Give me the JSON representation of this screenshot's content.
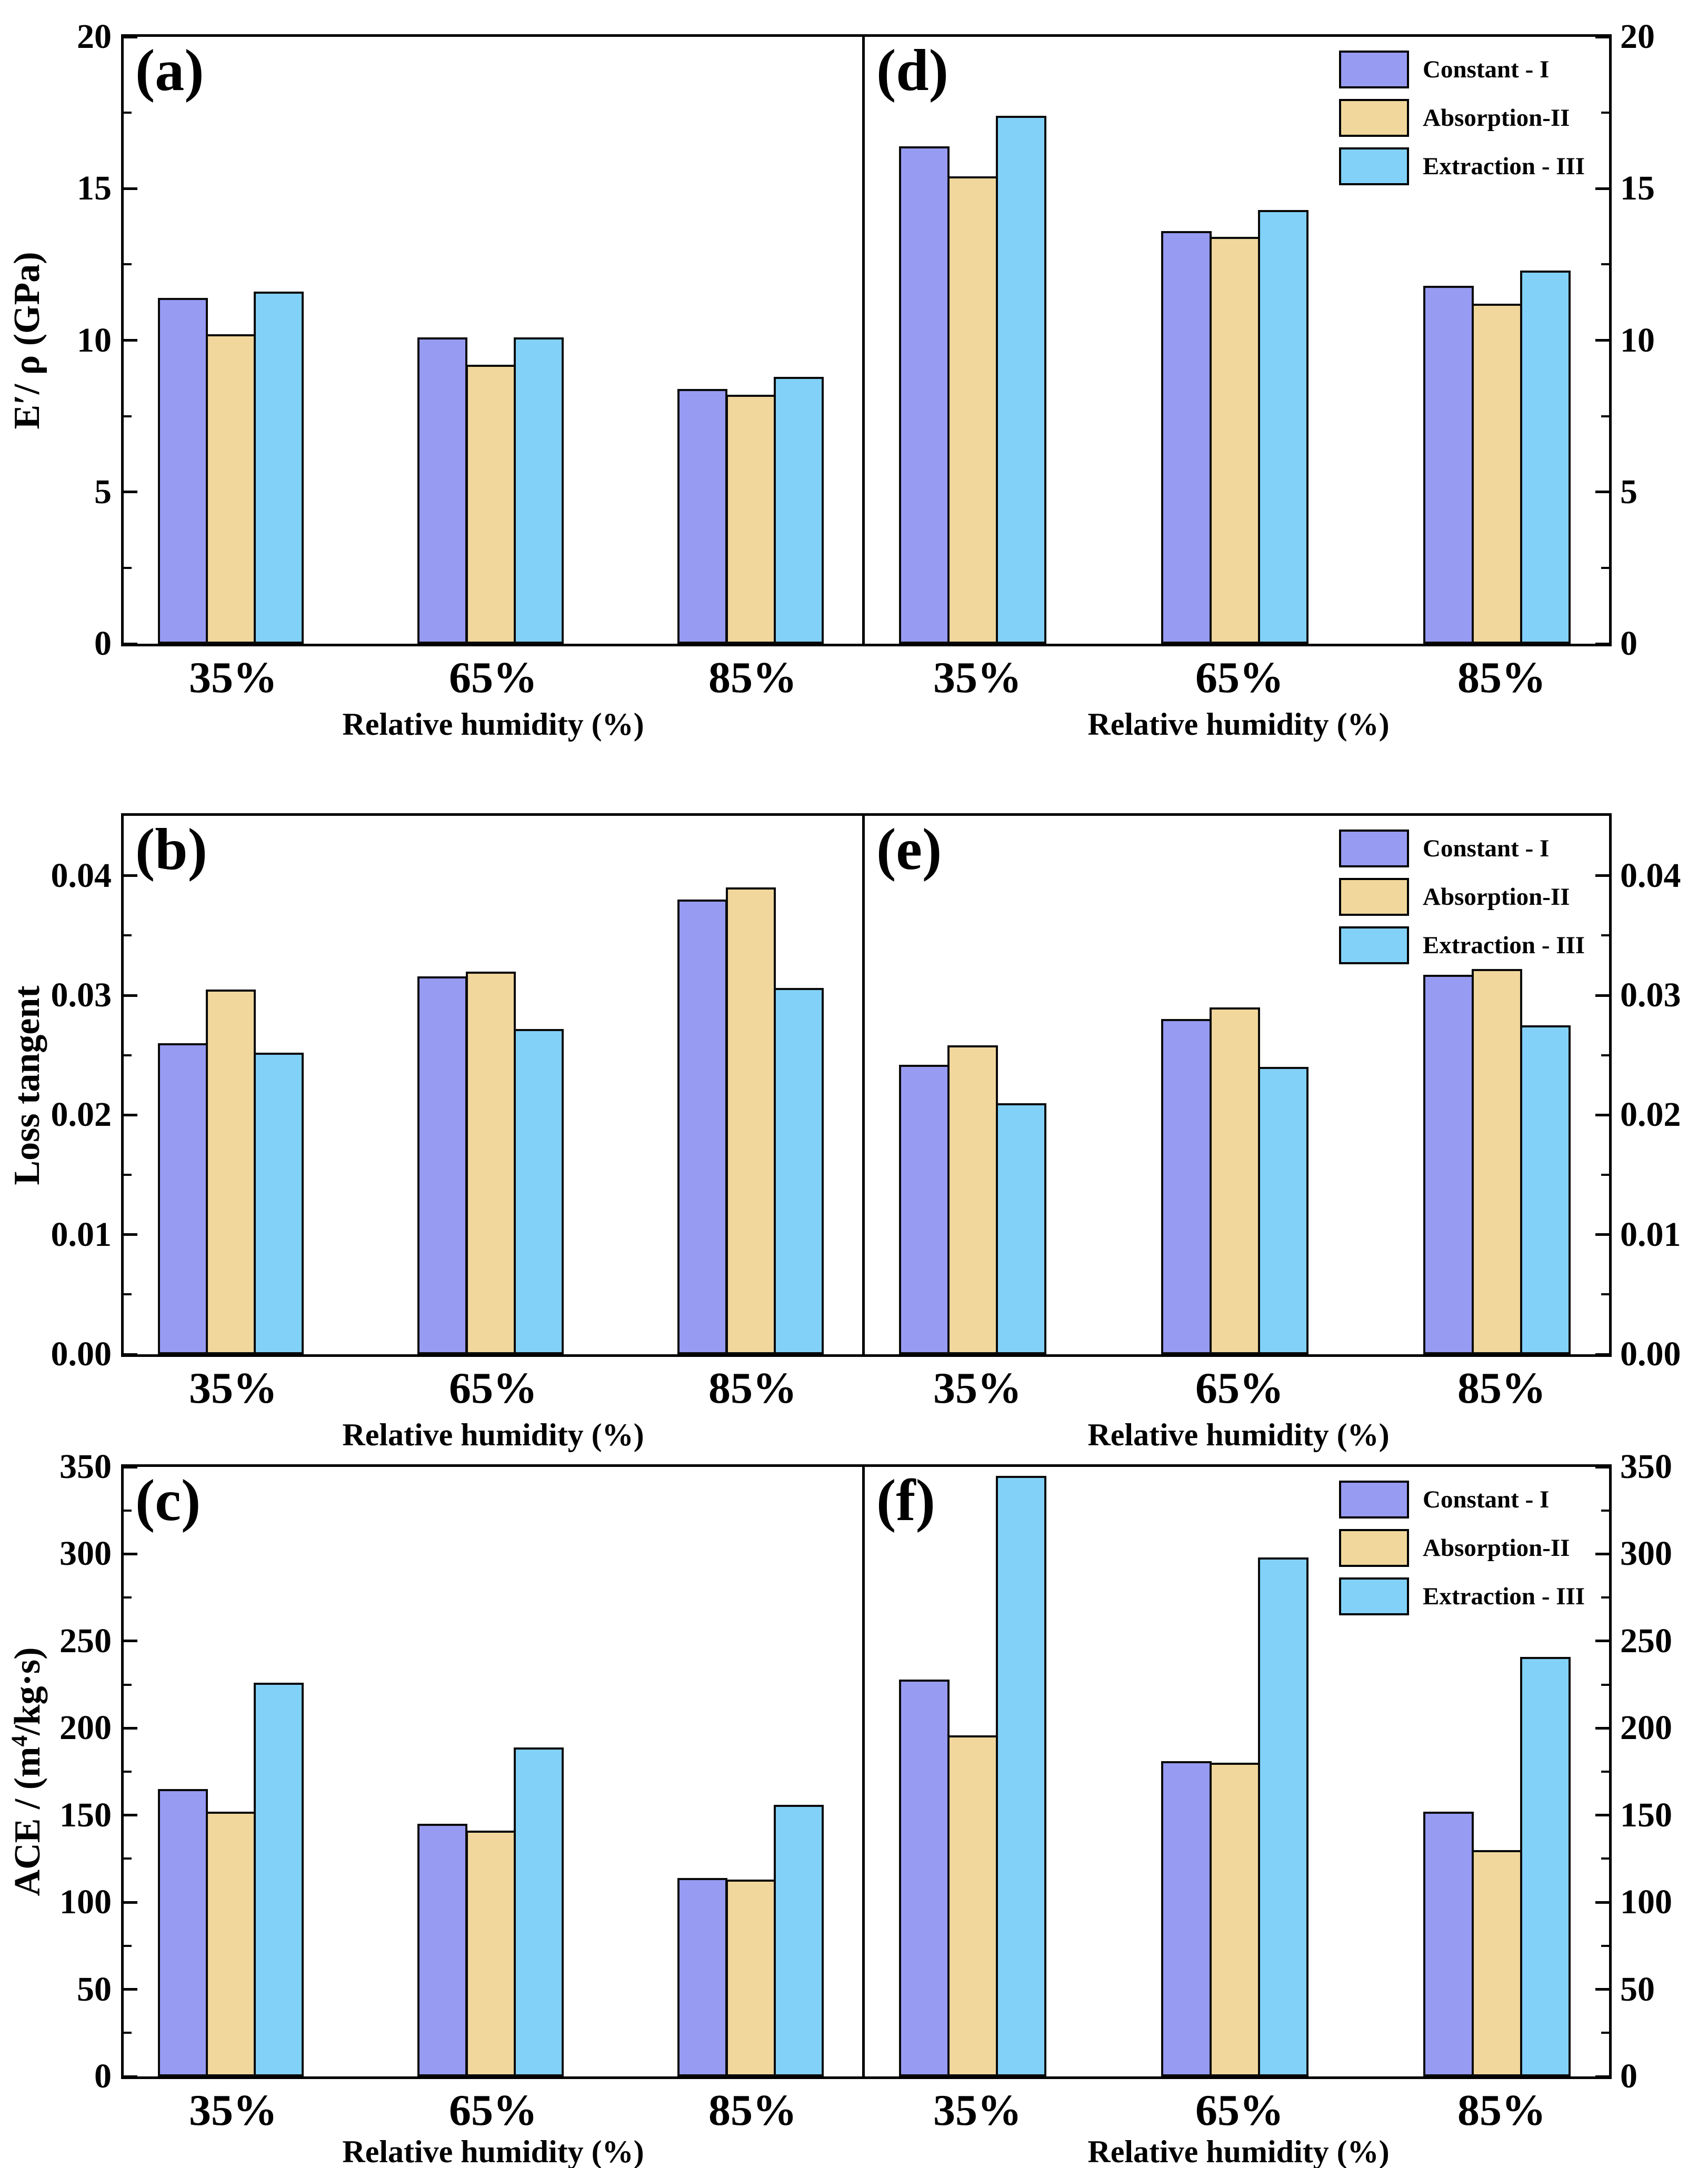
{
  "figure": {
    "background": "#ffffff",
    "axis_color": "#000000",
    "bar_border_color": "#0a0a0a",
    "x_title": "Relative humidity (%)",
    "categories": [
      "35%",
      "65%",
      "85%"
    ],
    "series": [
      {
        "name": "Constant  - I",
        "color": "#989BF2"
      },
      {
        "name": "Absorption-II",
        "color": "#F1D79C"
      },
      {
        "name": "Extraction - III",
        "color": "#82D1F9"
      }
    ]
  },
  "chart_data": [
    {
      "panel": "(a)",
      "type": "bar",
      "row": 1,
      "side": "left",
      "ylabel": "E′/ ρ (GPa)",
      "xlabel": "Relative humidity (%)",
      "ylim": [
        0,
        20
      ],
      "yticks": [
        0,
        5,
        10,
        15,
        20
      ],
      "minor_tick_step": 2.5,
      "tick_decimals": 0,
      "grid": false,
      "legend": false,
      "categories": [
        "35%",
        "65%",
        "85%"
      ],
      "series": [
        {
          "name": "Constant  - I",
          "values": [
            11.4,
            10.1,
            8.4
          ]
        },
        {
          "name": "Absorption-II",
          "values": [
            10.2,
            9.2,
            8.2
          ]
        },
        {
          "name": "Extraction - III",
          "values": [
            11.6,
            10.1,
            8.8
          ]
        }
      ]
    },
    {
      "panel": "(d)",
      "type": "bar",
      "row": 1,
      "side": "right",
      "ylabel": "",
      "xlabel": "Relative humidity (%)",
      "ylim": [
        0,
        20
      ],
      "yticks": [
        0,
        5,
        10,
        15,
        20
      ],
      "minor_tick_step": 2.5,
      "tick_decimals": 0,
      "grid": false,
      "legend": true,
      "legend_position": "top-right",
      "categories": [
        "35%",
        "65%",
        "85%"
      ],
      "series": [
        {
          "name": "Constant  - I",
          "values": [
            16.4,
            13.6,
            11.8
          ]
        },
        {
          "name": "Absorption-II",
          "values": [
            15.4,
            13.4,
            11.2
          ]
        },
        {
          "name": "Extraction - III",
          "values": [
            17.4,
            14.3,
            12.3
          ]
        }
      ]
    },
    {
      "panel": "(b)",
      "type": "bar",
      "row": 2,
      "side": "left",
      "ylabel": "Loss tangent",
      "xlabel": "Relative humidity (%)",
      "ylim": [
        0,
        0.045
      ],
      "yticks": [
        0,
        0.01,
        0.02,
        0.03,
        0.04
      ],
      "minor_tick_step": 0.005,
      "tick_decimals": 2,
      "grid": false,
      "legend": false,
      "categories": [
        "35%",
        "65%",
        "85%"
      ],
      "series": [
        {
          "name": "Constant  - I",
          "values": [
            0.026,
            0.0316,
            0.038
          ]
        },
        {
          "name": "Absorption-II",
          "values": [
            0.0305,
            0.032,
            0.039
          ]
        },
        {
          "name": "Extraction - III",
          "values": [
            0.0252,
            0.0272,
            0.0306
          ]
        }
      ]
    },
    {
      "panel": "(e)",
      "type": "bar",
      "row": 2,
      "side": "right",
      "ylabel": "",
      "xlabel": "Relative humidity (%)",
      "ylim": [
        0,
        0.045
      ],
      "yticks": [
        0,
        0.01,
        0.02,
        0.03,
        0.04
      ],
      "minor_tick_step": 0.005,
      "tick_decimals": 2,
      "grid": false,
      "legend": true,
      "legend_position": "top-right",
      "categories": [
        "35%",
        "65%",
        "85%"
      ],
      "series": [
        {
          "name": "Constant  - I",
          "values": [
            0.0242,
            0.028,
            0.0317
          ]
        },
        {
          "name": "Absorption-II",
          "values": [
            0.0258,
            0.029,
            0.0322
          ]
        },
        {
          "name": "Extraction - III",
          "values": [
            0.021,
            0.024,
            0.0275
          ]
        }
      ]
    },
    {
      "panel": "(c)",
      "type": "bar",
      "row": 3,
      "side": "left",
      "ylabel": "ACE / (m⁴/kg·s)",
      "ylabel_parts": [
        "ACE / (m",
        "4",
        "/kg·s)"
      ],
      "xlabel": "Relative humidity (%)",
      "ylim": [
        0,
        350
      ],
      "yticks": [
        0,
        50,
        100,
        150,
        200,
        250,
        300,
        350
      ],
      "minor_tick_step": 25,
      "tick_decimals": 0,
      "grid": false,
      "legend": false,
      "categories": [
        "35%",
        "65%",
        "85%"
      ],
      "series": [
        {
          "name": "Constant  - I",
          "values": [
            165,
            145,
            114
          ]
        },
        {
          "name": "Absorption-II",
          "values": [
            152,
            141,
            113
          ]
        },
        {
          "name": "Extraction - III",
          "values": [
            226,
            189,
            156
          ]
        }
      ]
    },
    {
      "panel": "(f)",
      "type": "bar",
      "row": 3,
      "side": "right",
      "ylabel": "",
      "xlabel": "Relative humidity (%)",
      "ylim": [
        0,
        350
      ],
      "yticks": [
        0,
        50,
        100,
        150,
        200,
        250,
        300,
        350
      ],
      "minor_tick_step": 25,
      "tick_decimals": 0,
      "grid": false,
      "legend": true,
      "legend_position": "top-right",
      "categories": [
        "35%",
        "65%",
        "85%"
      ],
      "series": [
        {
          "name": "Constant  - I",
          "values": [
            228,
            181,
            152
          ]
        },
        {
          "name": "Absorption-II",
          "values": [
            196,
            180,
            130
          ]
        },
        {
          "name": "Extraction - III",
          "values": [
            345,
            298,
            241
          ]
        }
      ]
    }
  ]
}
